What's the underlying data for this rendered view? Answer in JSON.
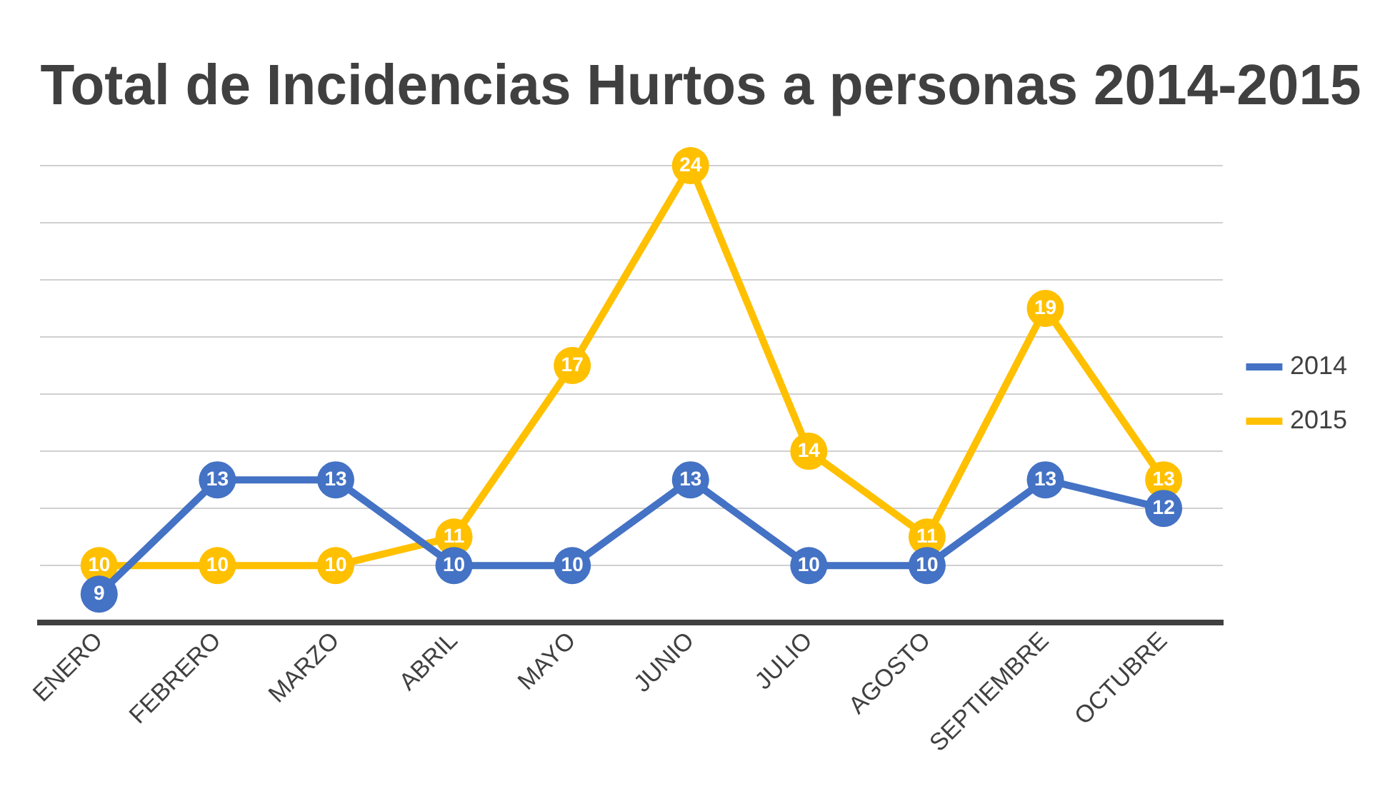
{
  "chart_data": {
    "type": "line",
    "title": "Total de Incidencias Hurtos a personas 2014-2015",
    "categories": [
      "ENERO",
      "FEBRERO",
      "MARZO",
      "ABRIL",
      "MAYO",
      "JUNIO",
      "JULIO",
      "AGOSTO",
      "SEPTIEMBRE",
      "OCTUBRE"
    ],
    "series": [
      {
        "name": "2014",
        "color": "#4472c4",
        "values": [
          9,
          13,
          13,
          10,
          10,
          13,
          10,
          10,
          13,
          12
        ]
      },
      {
        "name": "2015",
        "color": "#ffc000",
        "values": [
          10,
          10,
          10,
          11,
          17,
          24,
          14,
          11,
          19,
          13
        ]
      }
    ],
    "data_labels": true,
    "grid": "y",
    "legend": "right",
    "marker": "circle",
    "line_style": "solid",
    "tick_labels": "x"
  }
}
